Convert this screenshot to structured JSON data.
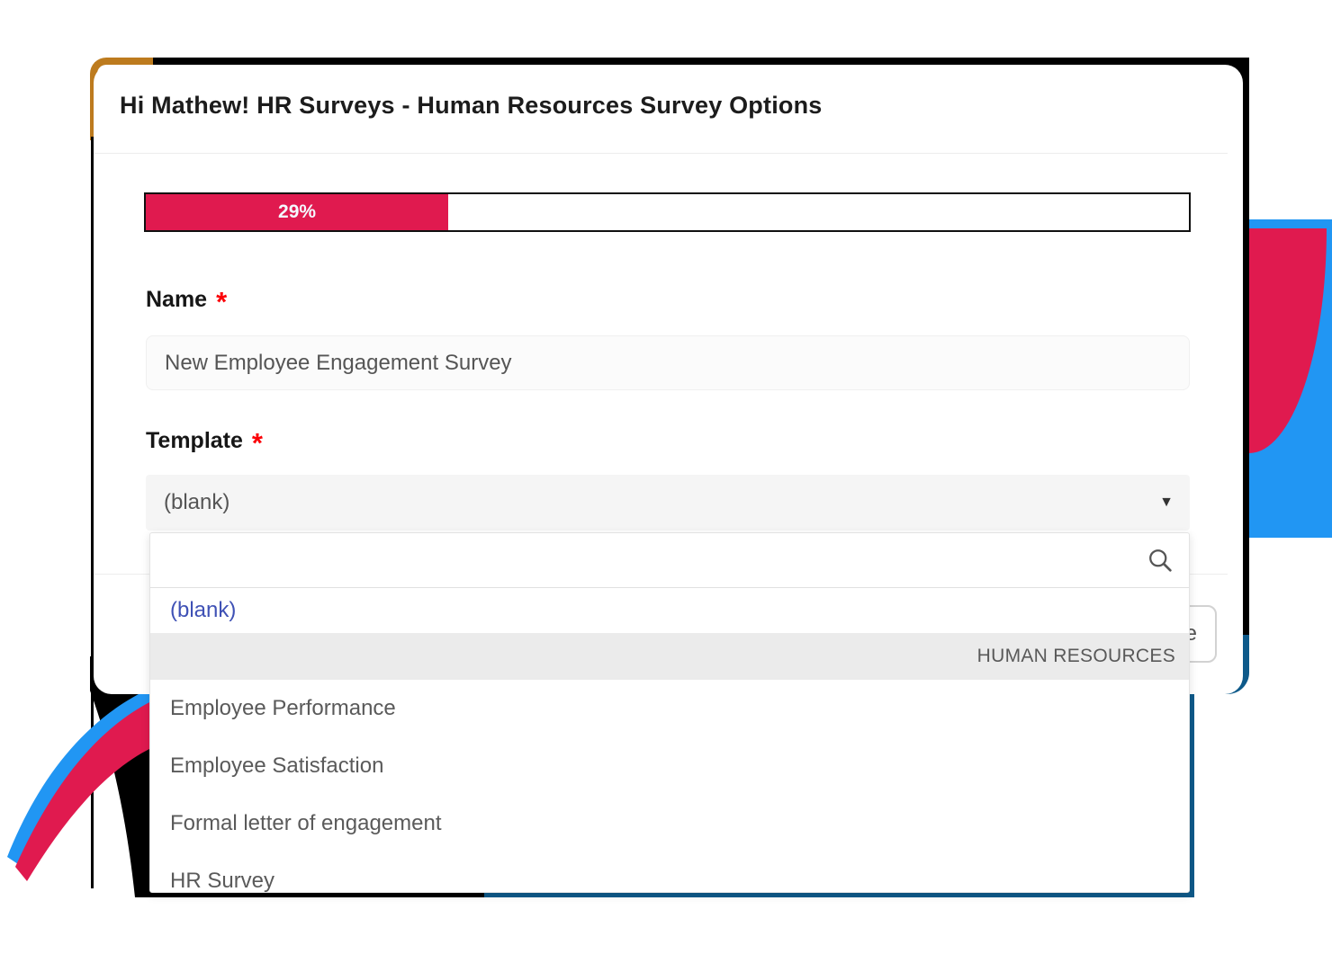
{
  "colors": {
    "progress_fill": "#E01A4F",
    "accent_crimson": "#E01A4F",
    "accent_blue": "#2196F3",
    "accent_navy": "#0E5A8A",
    "accent_gold": "#BD7B1E",
    "option_link_indigo": "#3F51B5"
  },
  "icons": {
    "caret_down": "▼",
    "search": "magnifier"
  },
  "modal": {
    "title": "Hi Mathew! HR Surveys - Human Resources Survey Options",
    "progress": {
      "value": 29,
      "label": "29%"
    },
    "name_field": {
      "label": "Name",
      "required_mark": "*",
      "value": "New Employee Engagement Survey"
    },
    "template_field": {
      "label": "Template",
      "required_mark": "*",
      "value": "(blank)"
    },
    "footer_button_visible_text": "e"
  },
  "template_dropdown": {
    "search_value": "",
    "blank_option": "(blank)",
    "group_header": "HUMAN RESOURCES",
    "options": [
      "Employee Performance",
      "Employee Satisfaction",
      "Formal letter of engagement",
      "HR Survey"
    ]
  }
}
